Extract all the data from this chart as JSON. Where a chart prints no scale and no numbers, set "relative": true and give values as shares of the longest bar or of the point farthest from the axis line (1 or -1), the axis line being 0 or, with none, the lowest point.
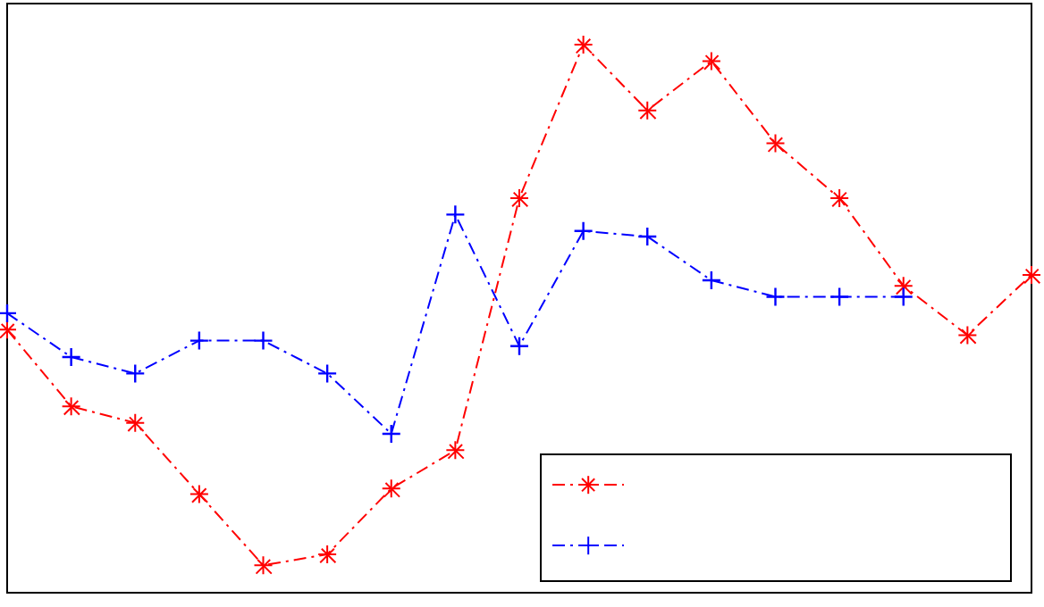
{
  "chart_data": {
    "type": "line",
    "relative": true,
    "grid": false,
    "line_style": "dashed",
    "categories": [
      null,
      null,
      null,
      null,
      null,
      null,
      null,
      null,
      null,
      null,
      null,
      null,
      null,
      null,
      null,
      null,
      null
    ],
    "series": [
      {
        "color": "#ff0000",
        "marker": "star",
        "values": [
          0.48,
          0.34,
          0.31,
          0.18,
          0.05,
          0.07,
          0.19,
          0.26,
          0.72,
          1,
          0.88,
          0.97,
          0.82,
          0.72,
          0.56,
          0.47,
          0.58
        ]
      },
      {
        "color": "#0000ff",
        "marker": "cross",
        "values": [
          0.51,
          0.43,
          0.4,
          0.46,
          0.46,
          0.4,
          0.29,
          0.69,
          0.45,
          0.66,
          0.65,
          0.57,
          0.54,
          0.54,
          0.54,
          null,
          null
        ]
      }
    ]
  }
}
